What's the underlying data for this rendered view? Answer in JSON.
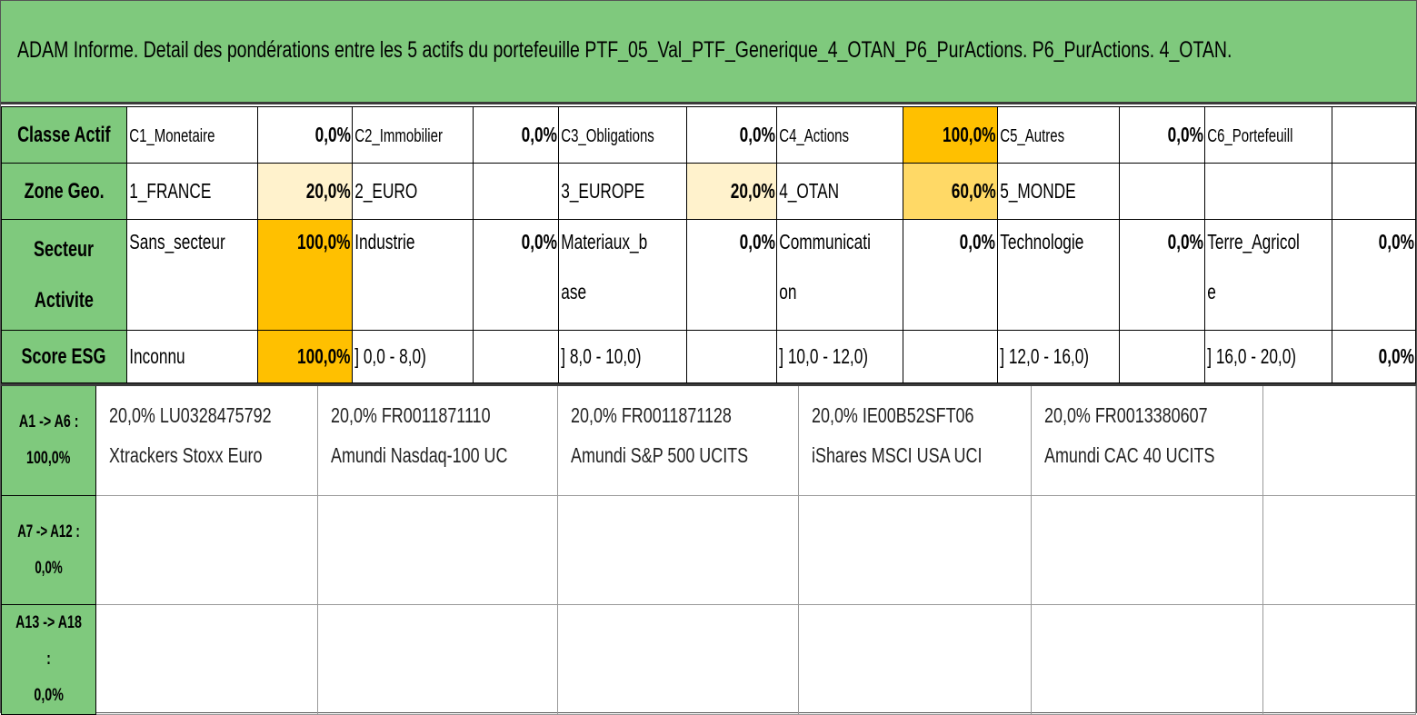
{
  "title": "ADAM Informe. Detail des pondérations entre les 5 actifs du portefeuille PTF_05_Val_PTF_Generique_4_OTAN_P6_PurActions. P6_PurActions. 4_OTAN.",
  "colors": {
    "header_green": "#7fc97d",
    "orange": "#ffc000",
    "light_orange": "#ffd966",
    "cream": "#fff2cc"
  },
  "rows": {
    "classe_actif": {
      "header": "Classe Actif",
      "cells": [
        {
          "label": "C1_Monetaire",
          "value": "0,0%"
        },
        {
          "label": "C2_Immobilier",
          "value": "0,0%"
        },
        {
          "label": "C3_Obligations",
          "value": "0,0%"
        },
        {
          "label": "C4_Actions",
          "value": "100,0%"
        },
        {
          "label": "C5_Autres",
          "value": "0,0%"
        },
        {
          "label": "C6_Portefeuill",
          "value": ""
        }
      ]
    },
    "zone_geo": {
      "header": "Zone Geo.",
      "cells": [
        {
          "label": "1_FRANCE",
          "value": "20,0%"
        },
        {
          "label": "2_EURO",
          "value": ""
        },
        {
          "label": "3_EUROPE",
          "value": "20,0%"
        },
        {
          "label": "4_OTAN",
          "value": "60,0%"
        },
        {
          "label": "5_MONDE",
          "value": ""
        },
        {
          "label": "",
          "value": ""
        }
      ]
    },
    "secteur": {
      "header_line1": "Secteur",
      "header_line2": "Activite",
      "cells": [
        {
          "label": "Sans_secteur",
          "label2": "",
          "value": "100,0%"
        },
        {
          "label": "Industrie",
          "label2": "",
          "value": "0,0%"
        },
        {
          "label": "Materiaux_b",
          "label2": "ase",
          "value": "0,0%"
        },
        {
          "label": "Communicati",
          "label2": "on",
          "value": "0,0%"
        },
        {
          "label": "Technologie",
          "label2": "",
          "value": "0,0%"
        },
        {
          "label": "Terre_Agricol",
          "label2": "e",
          "value": "0,0%"
        }
      ]
    },
    "score_esg": {
      "header": "Score ESG",
      "cells": [
        {
          "label": "Inconnu",
          "value": "100,0%"
        },
        {
          "label": "] 0,0 - 8,0)",
          "value": ""
        },
        {
          "label": "] 8,0 - 10,0)",
          "value": ""
        },
        {
          "label": "] 10,0 - 12,0)",
          "value": ""
        },
        {
          "label": "] 12,0 - 16,0)",
          "value": ""
        },
        {
          "label": "] 16,0 - 20,0)",
          "value": "0,0%"
        }
      ]
    }
  },
  "assets": {
    "group1": {
      "header_line1": "A1 -> A6 :",
      "header_line2": "100,0%",
      "items": [
        {
          "line1": "20,0% LU0328475792",
          "line2": "Xtrackers Stoxx Euro"
        },
        {
          "line1": "20,0% FR0011871110",
          "line2": "Amundi Nasdaq-100 UC"
        },
        {
          "line1": "20,0% FR0011871128",
          "line2": "Amundi S&P 500 UCITS"
        },
        {
          "line1": "20,0% IE00B52SFT06",
          "line2": "iShares MSCI USA UCI"
        },
        {
          "line1": "20,0% FR0013380607",
          "line2": "Amundi CAC 40 UCITS"
        }
      ]
    },
    "group2": {
      "header": "A7 -> A12 : 0,0%"
    },
    "group3": {
      "header_line1": "A13 -> A18 :",
      "header_line2": "0,0%"
    }
  }
}
